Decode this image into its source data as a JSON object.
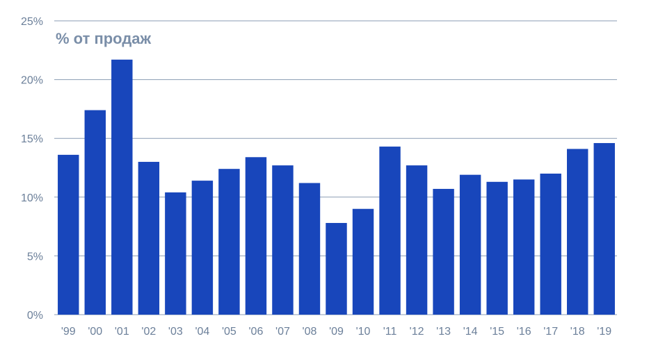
{
  "chart_data": {
    "type": "bar",
    "title": "% от продаж",
    "xlabel": "",
    "ylabel": "",
    "categories": [
      "'99",
      "'00",
      "'01",
      "'02",
      "'03",
      "'04",
      "'05",
      "'06",
      "'07",
      "'08",
      "'09",
      "'10",
      "'11",
      "'12",
      "'13",
      "'14",
      "'15",
      "'16",
      "'17",
      "'18",
      "'19"
    ],
    "values": [
      13.6,
      17.4,
      21.7,
      13.0,
      10.4,
      11.4,
      12.4,
      13.4,
      12.7,
      11.2,
      7.8,
      9.0,
      14.3,
      12.7,
      10.7,
      11.9,
      11.3,
      11.5,
      12.0,
      14.1,
      14.6
    ],
    "ylim": [
      0,
      25
    ],
    "yticks": [
      0,
      5,
      10,
      15,
      20,
      25
    ],
    "ytick_labels": [
      "0%",
      "5%",
      "10%",
      "15%",
      "20%",
      "25%"
    ],
    "grid": true,
    "bar_color": "#1846bb",
    "grid_color": "#8a9bb3"
  }
}
